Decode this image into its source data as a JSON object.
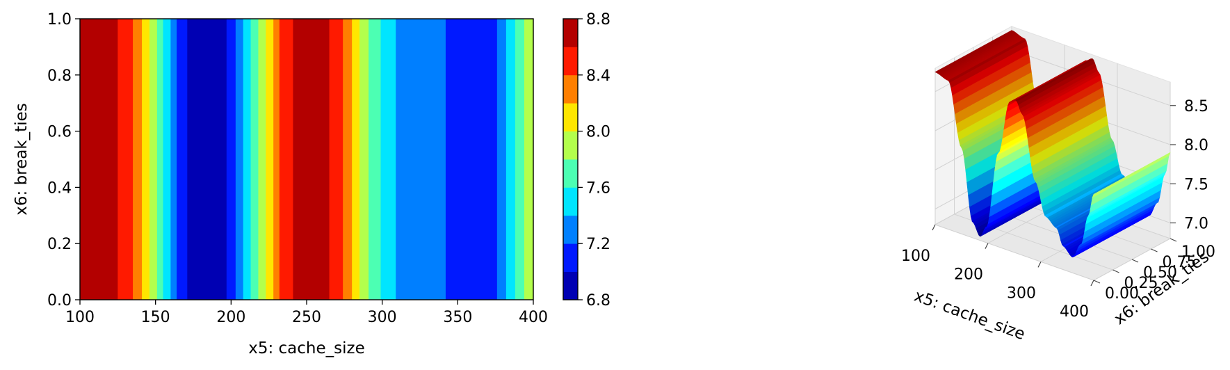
{
  "chart_data": [
    {
      "type": "heatmap",
      "title": "",
      "xlabel": "x5: cache_size",
      "ylabel": "x6: break_ties",
      "xlim": [
        100,
        400
      ],
      "ylim": [
        0,
        1
      ],
      "xticks": [
        "100",
        "150",
        "200",
        "250",
        "300",
        "350",
        "400"
      ],
      "yticks": [
        "0.0",
        "0.2",
        "0.4",
        "0.6",
        "0.8",
        "1.0"
      ],
      "colorscale": "jet",
      "colorbar": {
        "levels": [
          6.8,
          7.0,
          7.2,
          7.4,
          7.6,
          7.8,
          8.0,
          8.2,
          8.4,
          8.6,
          8.8
        ],
        "ticks": [
          "6.8",
          "7.2",
          "7.6",
          "8.0",
          "8.4",
          "8.8"
        ]
      },
      "bands": [
        {
          "x0": 100,
          "x1": 125,
          "value": 8.7
        },
        {
          "x0": 125,
          "x1": 135,
          "value": 8.5
        },
        {
          "x0": 135,
          "x1": 141,
          "value": 8.3
        },
        {
          "x0": 141,
          "x1": 146,
          "value": 8.1
        },
        {
          "x0": 146,
          "x1": 151,
          "value": 7.9
        },
        {
          "x0": 151,
          "x1": 155,
          "value": 7.7
        },
        {
          "x0": 155,
          "x1": 160,
          "value": 7.5
        },
        {
          "x0": 160,
          "x1": 164,
          "value": 7.3
        },
        {
          "x0": 164,
          "x1": 171,
          "value": 7.1
        },
        {
          "x0": 171,
          "x1": 197,
          "value": 6.9
        },
        {
          "x0": 197,
          "x1": 203,
          "value": 7.1
        },
        {
          "x0": 203,
          "x1": 208,
          "value": 7.3
        },
        {
          "x0": 208,
          "x1": 213,
          "value": 7.5
        },
        {
          "x0": 213,
          "x1": 218,
          "value": 7.7
        },
        {
          "x0": 218,
          "x1": 223,
          "value": 7.9
        },
        {
          "x0": 223,
          "x1": 228,
          "value": 8.1
        },
        {
          "x0": 228,
          "x1": 232,
          "value": 8.3
        },
        {
          "x0": 232,
          "x1": 241,
          "value": 8.5
        },
        {
          "x0": 241,
          "x1": 265,
          "value": 8.7
        },
        {
          "x0": 265,
          "x1": 274,
          "value": 8.5
        },
        {
          "x0": 274,
          "x1": 280,
          "value": 8.3
        },
        {
          "x0": 280,
          "x1": 285,
          "value": 8.1
        },
        {
          "x0": 285,
          "x1": 291,
          "value": 7.9
        },
        {
          "x0": 291,
          "x1": 299,
          "value": 7.7
        },
        {
          "x0": 299,
          "x1": 309,
          "value": 7.5
        },
        {
          "x0": 309,
          "x1": 342,
          "value": 7.3
        },
        {
          "x0": 342,
          "x1": 376,
          "value": 7.1
        },
        {
          "x0": 376,
          "x1": 382,
          "value": 7.3
        },
        {
          "x0": 382,
          "x1": 388,
          "value": 7.5
        },
        {
          "x0": 388,
          "x1": 394,
          "value": 7.7
        },
        {
          "x0": 394,
          "x1": 400,
          "value": 7.9
        }
      ]
    },
    {
      "type": "surface3d",
      "title": "",
      "xlabel": "x5: cache_size",
      "ylabel": "x6: break_ties",
      "zlabel": "",
      "xlim": [
        100,
        400
      ],
      "ylim": [
        0,
        1
      ],
      "zlim": [
        6.8,
        8.8
      ],
      "xticks": [
        "100",
        "200",
        "300",
        "400"
      ],
      "yticks": [
        "0.00",
        "0.25",
        "0.50",
        "0.75",
        "1.00"
      ],
      "zticks": [
        "7.0",
        "7.5",
        "8.0",
        "8.5"
      ],
      "colorscale": "jet",
      "surface_profile": {
        "x": [
          100,
          125,
          150,
          171,
          185,
          197,
          220,
          241,
          253,
          265,
          290,
          309,
          330,
          342,
          360,
          376,
          390,
          400
        ],
        "z": [
          8.75,
          8.7,
          7.9,
          7.0,
          6.85,
          7.0,
          8.0,
          8.7,
          8.75,
          8.6,
          7.8,
          7.4,
          7.3,
          7.1,
          7.0,
          7.2,
          7.6,
          7.9
        ]
      }
    }
  ]
}
